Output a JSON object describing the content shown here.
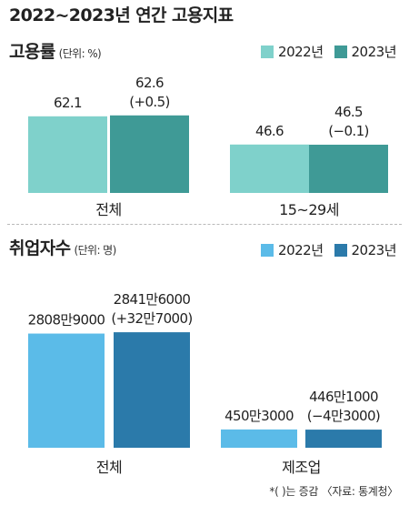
{
  "title": "2022~2023년 연간 고용지표",
  "footnote": "*(  )는 증감 〈자료: 통계청〉",
  "colors": {
    "employment_rate": [
      "#7fd1cb",
      "#3f9a96"
    ],
    "employed": [
      "#5bbbe8",
      "#2b7aaa"
    ]
  },
  "chart_data": [
    {
      "type": "bar",
      "title": "고용률",
      "unit": "(단위: %)",
      "categories": [
        "전체",
        "15~29세"
      ],
      "series": [
        {
          "name": "2022년",
          "values": [
            62.1,
            46.6
          ],
          "labels": [
            "62.1",
            "46.6"
          ]
        },
        {
          "name": "2023년",
          "values": [
            62.6,
            46.5
          ],
          "labels": [
            "62.6\n(+0.5)",
            "46.5\n(−0.1)"
          ]
        }
      ],
      "ylim": [
        20,
        70
      ],
      "grid": false,
      "legend": "top-right"
    },
    {
      "type": "bar",
      "title": "취업자수",
      "unit": "(단위: 명)",
      "categories": [
        "전체",
        "제조업"
      ],
      "series": [
        {
          "name": "2022년",
          "values": [
            28089000,
            4503000
          ],
          "labels": [
            "2808만9000",
            "450만3000"
          ]
        },
        {
          "name": "2023년",
          "values": [
            28416000,
            4461000
          ],
          "labels": [
            "2841만6000\n(+32만7000)",
            "446만1000\n(−4만3000)"
          ]
        }
      ],
      "ylim": [
        0,
        30000000
      ],
      "grid": false,
      "legend": "top-right"
    }
  ]
}
